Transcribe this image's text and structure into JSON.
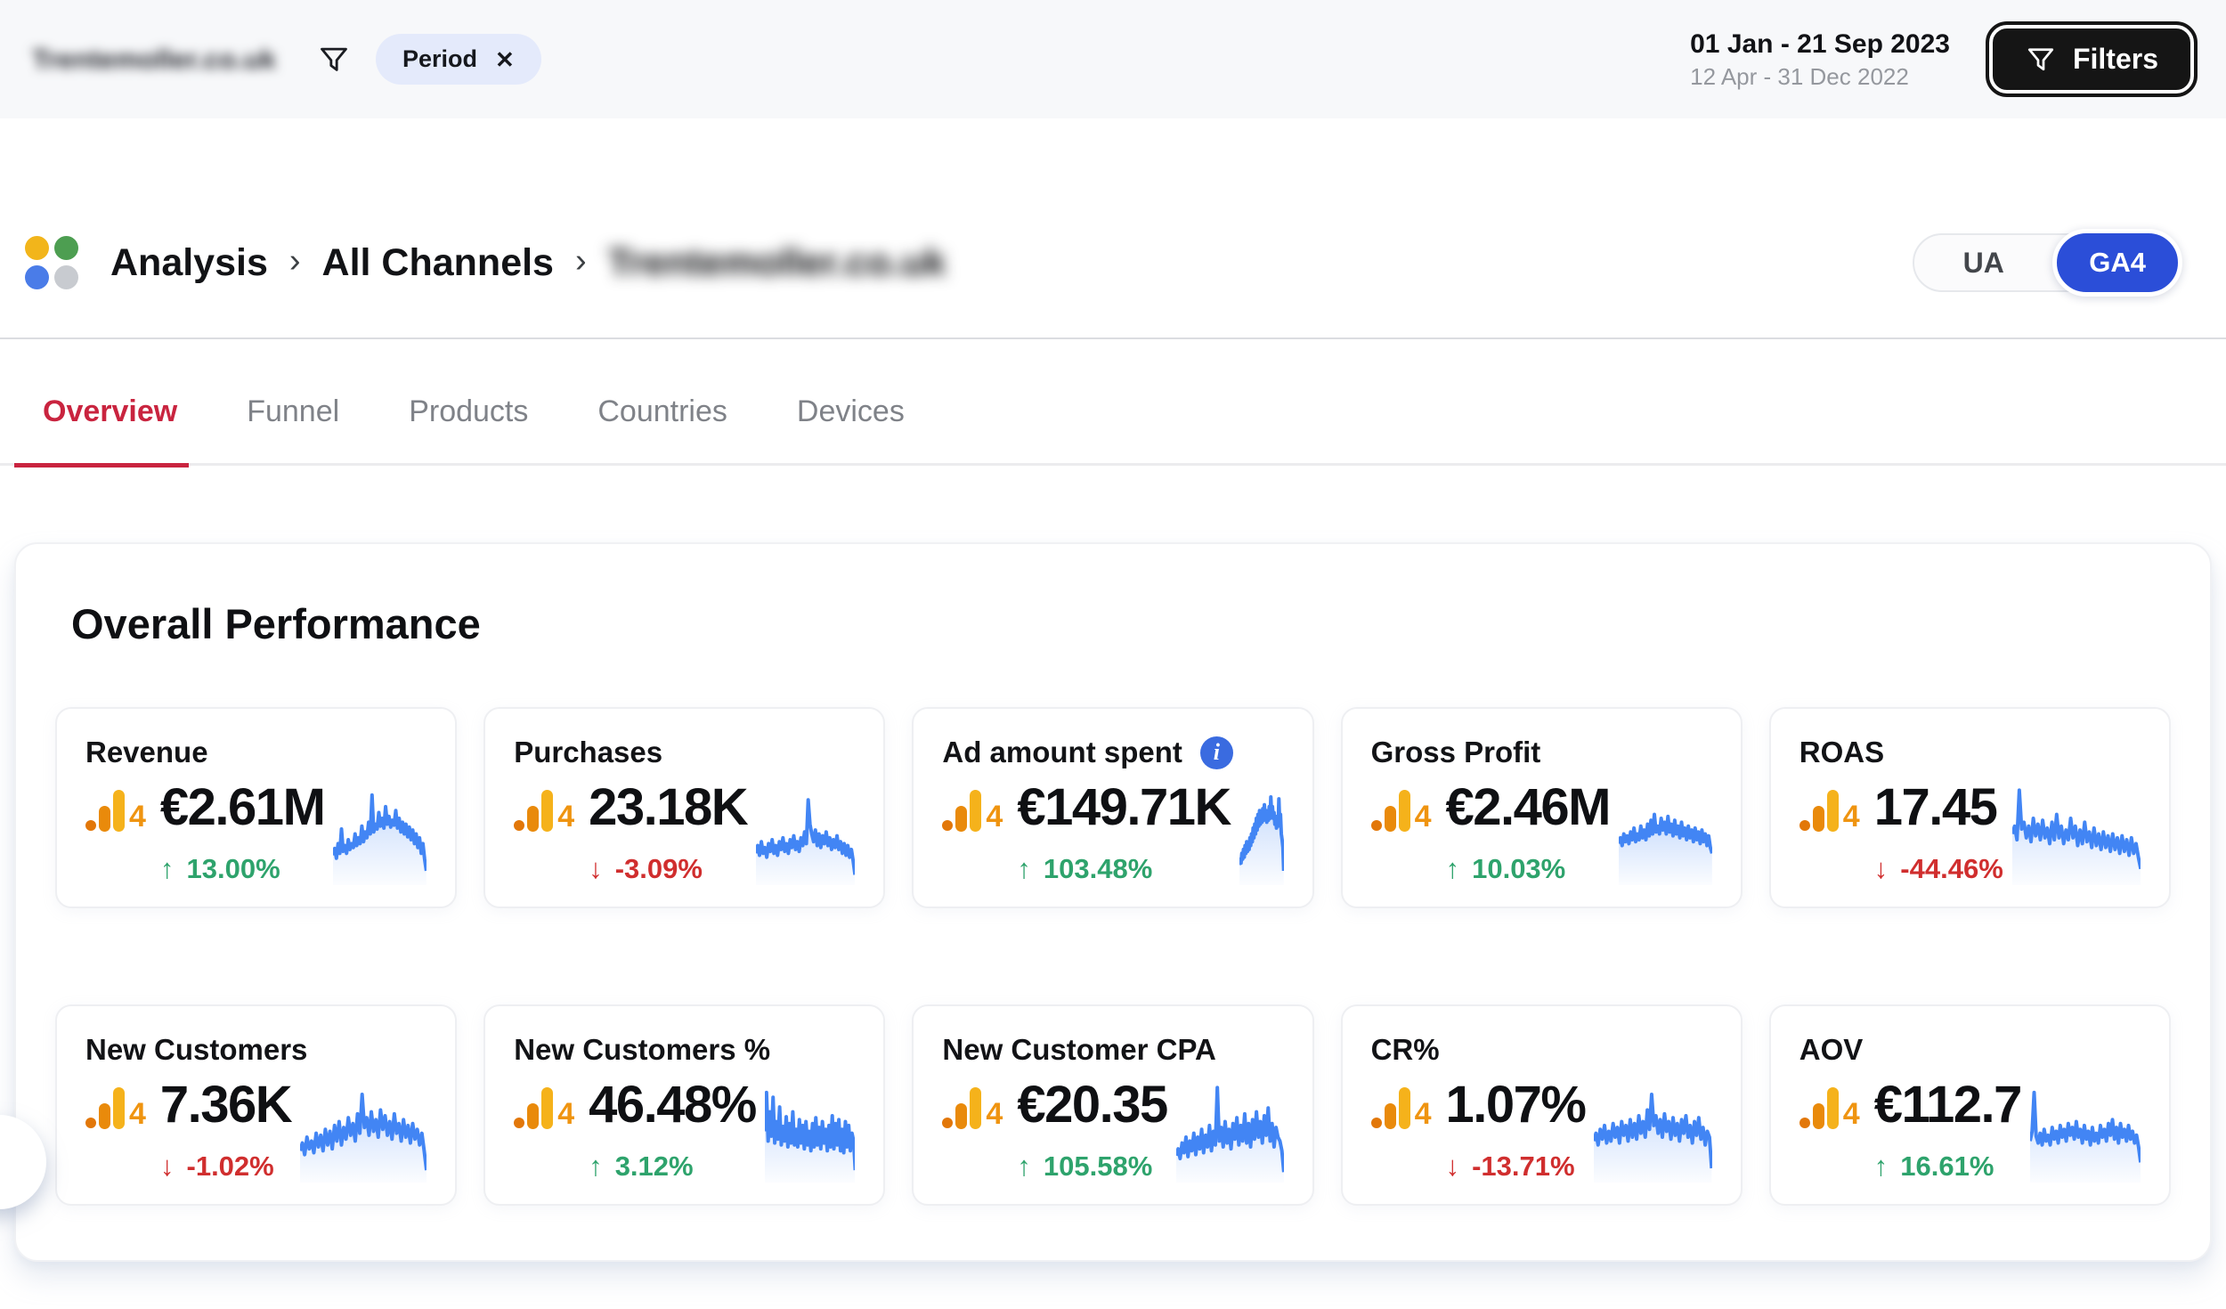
{
  "header": {
    "site_name": "Trentemoller.co.uk",
    "filter_chip_label": "Period",
    "date_primary": "01 Jan - 21 Sep 2023",
    "date_secondary": "12 Apr - 31 Dec 2022",
    "filters_button_label": "Filters"
  },
  "breadcrumb": {
    "items": [
      "Analysis",
      "All Channels",
      "Trentemoller.co.uk"
    ]
  },
  "source_toggle": {
    "options": [
      "UA",
      "GA4"
    ],
    "selected": "GA4"
  },
  "tabs": {
    "items": [
      "Overview",
      "Funnel",
      "Products",
      "Countries",
      "Devices"
    ],
    "active": "Overview"
  },
  "section": {
    "title": "Overall Performance"
  },
  "icons": {
    "arrow_up": "↑",
    "arrow_down": "↓",
    "chip_close": "✕",
    "breadcrumb_separator": "›",
    "info": "i",
    "ga4_badge": "4"
  },
  "colors": {
    "accent_blue": "#2B4ED8",
    "sparkline_blue": "#4285F4",
    "positive_green": "#2EA36C",
    "negative_red": "#D02E2E",
    "tab_active_red": "#C9243F",
    "ga4_orange": "#EF9410"
  },
  "metrics": [
    {
      "label": "Revenue",
      "value": "€2.61M",
      "delta": "13.00%",
      "direction": "up",
      "info": false,
      "sparkline": [
        28,
        35,
        25,
        40,
        30,
        55,
        32,
        38,
        30,
        44,
        34,
        40,
        36,
        50,
        38,
        46,
        40,
        58,
        42,
        52,
        46,
        62,
        50,
        90,
        52,
        60,
        55,
        72,
        58,
        66,
        56,
        78,
        60,
        68,
        57,
        64,
        59,
        74,
        56,
        66,
        52,
        62,
        50,
        60,
        47,
        57,
        44,
        54,
        40,
        50,
        36,
        46,
        30,
        40,
        24,
        12
      ]
    },
    {
      "label": "Purchases",
      "value": "23.18K",
      "delta": "-3.09%",
      "direction": "down",
      "info": false,
      "sparkline": [
        30,
        38,
        28,
        42,
        30,
        36,
        26,
        40,
        32,
        44,
        30,
        38,
        28,
        42,
        34,
        46,
        32,
        40,
        30,
        44,
        36,
        48,
        34,
        42,
        32,
        46,
        38,
        52,
        40,
        85,
        60,
        50,
        42,
        54,
        38,
        50,
        36,
        48,
        40,
        52,
        38,
        46,
        34,
        44,
        36,
        48,
        34,
        42,
        30,
        40,
        28,
        38,
        26,
        34,
        22,
        8
      ]
    },
    {
      "label": "Ad amount spent",
      "value": "€149.71K",
      "delta": "103.48%",
      "direction": "up",
      "info": true,
      "sparkline": [
        18,
        24,
        20,
        30,
        24,
        34,
        26,
        38,
        30,
        42,
        32,
        40,
        34,
        46,
        38,
        50,
        42,
        56,
        46,
        60,
        50,
        66,
        54,
        70,
        58,
        74,
        60,
        68,
        62,
        76,
        64,
        80,
        66,
        74,
        62,
        70,
        64,
        78,
        66,
        88,
        70,
        78,
        66,
        72,
        60,
        68,
        56,
        64,
        58,
        86,
        62,
        70,
        50,
        44,
        36,
        12
      ]
    },
    {
      "label": "Gross Profit",
      "value": "€2.46M",
      "delta": "10.03%",
      "direction": "up",
      "info": false,
      "sparkline": [
        40,
        46,
        38,
        50,
        42,
        48,
        40,
        52,
        44,
        56,
        42,
        50,
        44,
        58,
        46,
        54,
        44,
        60,
        48,
        64,
        50,
        70,
        52,
        58,
        50,
        66,
        54,
        62,
        50,
        68,
        52,
        60,
        48,
        64,
        50,
        58,
        46,
        62,
        48,
        56,
        44,
        58,
        46,
        54,
        42,
        56,
        44,
        52,
        40,
        54,
        42,
        50,
        38,
        48,
        36,
        30
      ]
    },
    {
      "label": "ROAS",
      "value": "17.45",
      "delta": "-44.46%",
      "direction": "down",
      "info": false,
      "sparkline": [
        50,
        58,
        44,
        95,
        55,
        62,
        46,
        58,
        42,
        66,
        48,
        60,
        44,
        64,
        46,
        56,
        40,
        62,
        44,
        70,
        46,
        58,
        40,
        54,
        44,
        66,
        46,
        58,
        38,
        54,
        40,
        62,
        42,
        52,
        36,
        56,
        38,
        50,
        34,
        52,
        36,
        48,
        32,
        50,
        34,
        46,
        30,
        48,
        32,
        44,
        28,
        46,
        30,
        40,
        26,
        14
      ]
    },
    {
      "label": "New Customers",
      "value": "7.36K",
      "delta": "-1.02%",
      "direction": "down",
      "info": false,
      "sparkline": [
        30,
        38,
        26,
        44,
        32,
        40,
        28,
        48,
        34,
        46,
        30,
        52,
        36,
        50,
        32,
        56,
        40,
        60,
        36,
        54,
        42,
        64,
        46,
        58,
        40,
        68,
        48,
        88,
        54,
        64,
        46,
        70,
        50,
        62,
        44,
        72,
        52,
        66,
        46,
        60,
        42,
        68,
        48,
        58,
        40,
        62,
        44,
        56,
        38,
        58,
        42,
        52,
        36,
        48,
        30,
        10
      ]
    },
    {
      "label": "New Customers %",
      "value": "46.48%",
      "delta": "3.12%",
      "direction": "up",
      "info": false,
      "sparkline": [
        50,
        90,
        40,
        70,
        45,
        85,
        38,
        60,
        42,
        75,
        36,
        55,
        40,
        65,
        34,
        58,
        38,
        70,
        36,
        52,
        34,
        62,
        38,
        56,
        32,
        60,
        36,
        50,
        30,
        58,
        34,
        64,
        36,
        54,
        32,
        60,
        38,
        52,
        30,
        56,
        34,
        66,
        32,
        58,
        36,
        62,
        30,
        52,
        28,
        60,
        34,
        56,
        30,
        48,
        40,
        10
      ]
    },
    {
      "label": "New Customer CPA",
      "value": "€20.35",
      "delta": "105.58%",
      "direction": "up",
      "info": false,
      "sparkline": [
        25,
        32,
        22,
        38,
        28,
        44,
        24,
        40,
        30,
        48,
        26,
        44,
        32,
        52,
        28,
        46,
        34,
        56,
        30,
        50,
        36,
        95,
        40,
        54,
        34,
        60,
        38,
        52,
        32,
        58,
        42,
        64,
        36,
        56,
        40,
        68,
        38,
        58,
        34,
        62,
        42,
        70,
        44,
        60,
        38,
        66,
        46,
        74,
        40,
        58,
        34,
        54,
        44,
        40,
        30,
        8
      ]
    },
    {
      "label": "CR%",
      "value": "1.07%",
      "delta": "-13.71%",
      "direction": "down",
      "info": false,
      "sparkline": [
        40,
        48,
        36,
        52,
        42,
        56,
        38,
        50,
        40,
        58,
        44,
        54,
        38,
        60,
        46,
        56,
        40,
        62,
        44,
        58,
        42,
        66,
        48,
        60,
        44,
        72,
        52,
        88,
        56,
        66,
        48,
        62,
        44,
        68,
        50,
        60,
        42,
        64,
        46,
        58,
        40,
        62,
        48,
        66,
        44,
        56,
        38,
        60,
        46,
        64,
        42,
        54,
        36,
        50,
        44,
        12
      ]
    },
    {
      "label": "AOV",
      "value": "€112.7",
      "delta": "16.61%",
      "direction": "up",
      "info": false,
      "sparkline": [
        40,
        50,
        90,
        45,
        38,
        48,
        36,
        52,
        40,
        46,
        36,
        54,
        42,
        50,
        38,
        56,
        44,
        52,
        40,
        58,
        46,
        54,
        42,
        60,
        44,
        52,
        38,
        56,
        42,
        50,
        36,
        54,
        40,
        48,
        38,
        56,
        44,
        52,
        40,
        58,
        46,
        62,
        42,
        54,
        38,
        58,
        44,
        52,
        40,
        56,
        42,
        50,
        38,
        46,
        34,
        18
      ]
    }
  ]
}
